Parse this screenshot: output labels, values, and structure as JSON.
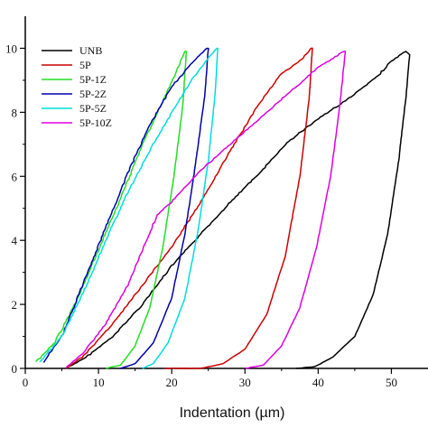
{
  "chart_data": {
    "type": "line",
    "title": "",
    "xlabel": "Indentation (µm)",
    "ylabel": "",
    "xlim": [
      0,
      55
    ],
    "ylim": [
      0,
      11
    ],
    "x_ticks": [
      0,
      10,
      20,
      30,
      40,
      50
    ],
    "y_ticks": [
      0,
      2,
      4,
      6,
      8,
      10
    ],
    "legend_position": "top-left",
    "grid": false,
    "series": [
      {
        "name": "UNB",
        "color": "#000000",
        "loading": [
          [
            5.5,
            0
          ],
          [
            8,
            0.3
          ],
          [
            12,
            1
          ],
          [
            16,
            2
          ],
          [
            20,
            3.2
          ],
          [
            24,
            4.2
          ],
          [
            28,
            5.2
          ],
          [
            32,
            6.1
          ],
          [
            36,
            7.1
          ],
          [
            40,
            7.8
          ],
          [
            44,
            8.4
          ],
          [
            48,
            9.1
          ],
          [
            50,
            9.6
          ],
          [
            52,
            9.9
          ]
        ],
        "unloading": [
          [
            52.5,
            9.8
          ],
          [
            52,
            8.5
          ],
          [
            51,
            6.5
          ],
          [
            49.5,
            4.2
          ],
          [
            47.5,
            2.3
          ],
          [
            45,
            1
          ],
          [
            42,
            0.35
          ],
          [
            39.5,
            0.05
          ],
          [
            37,
            0
          ]
        ]
      },
      {
        "name": "5P",
        "color": "#cc0000",
        "loading": [
          [
            5.5,
            0
          ],
          [
            8,
            0.4
          ],
          [
            12,
            1.4
          ],
          [
            16,
            2.6
          ],
          [
            20,
            3.8
          ],
          [
            24,
            5.2
          ],
          [
            28,
            6.8
          ],
          [
            32,
            8.3
          ],
          [
            35,
            9.2
          ],
          [
            38,
            9.7
          ],
          [
            39,
            10
          ]
        ],
        "unloading": [
          [
            39.2,
            10
          ],
          [
            38.8,
            8.5
          ],
          [
            37.5,
            6
          ],
          [
            35.5,
            3.5
          ],
          [
            33,
            1.7
          ],
          [
            30,
            0.6
          ],
          [
            27,
            0.15
          ],
          [
            24,
            0
          ],
          [
            19,
            0
          ]
        ]
      },
      {
        "name": "5P-1Z",
        "color": "#22dd22",
        "loading": [
          [
            1.5,
            0.2
          ],
          [
            4,
            0.8
          ],
          [
            7,
            2.1
          ],
          [
            10,
            3.7
          ],
          [
            13,
            5.3
          ],
          [
            16,
            7
          ],
          [
            18.5,
            8.2
          ],
          [
            20.5,
            9.2
          ],
          [
            21.8,
            9.9
          ]
        ],
        "unloading": [
          [
            22,
            9.9
          ],
          [
            21.5,
            8.2
          ],
          [
            20.3,
            6
          ],
          [
            18.8,
            3.8
          ],
          [
            17,
            1.9
          ],
          [
            15,
            0.7
          ],
          [
            13,
            0.1
          ],
          [
            11,
            0
          ]
        ]
      },
      {
        "name": "5P-2Z",
        "color": "#0000aa",
        "loading": [
          [
            2.5,
            0.2
          ],
          [
            5,
            1
          ],
          [
            8,
            2.7
          ],
          [
            11,
            4.4
          ],
          [
            14,
            6.1
          ],
          [
            17,
            7.6
          ],
          [
            20,
            8.8
          ],
          [
            23,
            9.6
          ],
          [
            24.8,
            10
          ]
        ],
        "unloading": [
          [
            25,
            10
          ],
          [
            24.5,
            8.5
          ],
          [
            23.2,
            6.3
          ],
          [
            21.8,
            4.2
          ],
          [
            20,
            2.2
          ],
          [
            17.5,
            0.8
          ],
          [
            15,
            0.15
          ],
          [
            13,
            0
          ]
        ]
      },
      {
        "name": "5P-5Z",
        "color": "#00dddd",
        "loading": [
          [
            2,
            0.2
          ],
          [
            5,
            1
          ],
          [
            8,
            2.4
          ],
          [
            11,
            4
          ],
          [
            14,
            5.5
          ],
          [
            17,
            6.8
          ],
          [
            20,
            8
          ],
          [
            23,
            9.1
          ],
          [
            25,
            9.7
          ],
          [
            26.2,
            10
          ]
        ],
        "unloading": [
          [
            26.3,
            10
          ],
          [
            25.9,
            8.5
          ],
          [
            25,
            6.5
          ],
          [
            23.6,
            4.3
          ],
          [
            21.8,
            2.2
          ],
          [
            19.5,
            0.8
          ],
          [
            17.5,
            0.15
          ],
          [
            16,
            0
          ]
        ]
      },
      {
        "name": "5P-10Z",
        "color": "#dd00dd",
        "loading": [
          [
            5.5,
            0
          ],
          [
            8,
            0.5
          ],
          [
            11,
            1.4
          ],
          [
            14,
            2.6
          ],
          [
            16,
            3.7
          ],
          [
            18,
            4.8
          ],
          [
            20,
            5.2
          ],
          [
            24,
            6.2
          ],
          [
            28,
            7
          ],
          [
            32,
            7.8
          ],
          [
            36,
            8.6
          ],
          [
            40,
            9.4
          ],
          [
            43.5,
            9.9
          ]
        ],
        "unloading": [
          [
            43.7,
            9.9
          ],
          [
            43,
            8.3
          ],
          [
            41.7,
            6
          ],
          [
            39.8,
            3.8
          ],
          [
            37.5,
            1.9
          ],
          [
            35,
            0.7
          ],
          [
            32.5,
            0.1
          ],
          [
            30,
            0
          ]
        ]
      }
    ]
  }
}
